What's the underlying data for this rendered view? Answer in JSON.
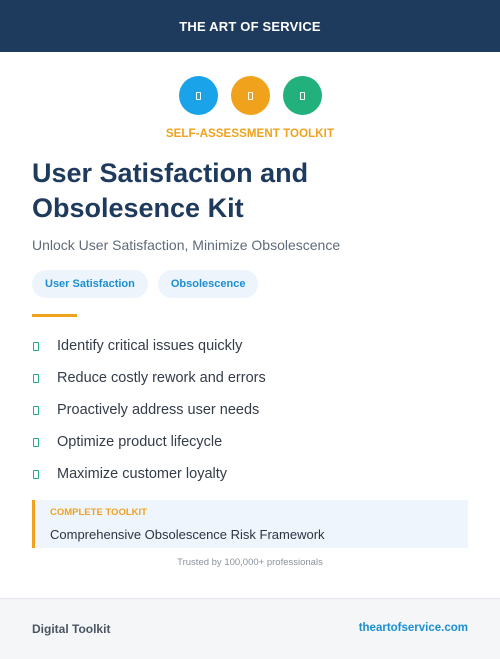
{
  "header": {
    "brand": "THE ART OF SERVICE"
  },
  "icons": [
    {
      "name": "document-icon",
      "color": "#1aa3e8"
    },
    {
      "name": "document-icon",
      "color": "#f0a21c"
    },
    {
      "name": "document-icon",
      "color": "#22b07d"
    }
  ],
  "kicker": "SELF-ASSESSMENT TOOLKIT",
  "title": "User Satisfaction and Obsolesence Kit",
  "subtitle": "Unlock User Satisfaction, Minimize Obsolescence",
  "tags": [
    "User Satisfaction",
    "Obsolescence"
  ],
  "features": [
    "Identify critical issues quickly",
    "Reduce costly rework and errors",
    "Proactively address user needs",
    "Optimize product lifecycle",
    "Maximize customer loyalty"
  ],
  "callout": {
    "label": "COMPLETE TOOLKIT",
    "text": "Comprehensive Obsolescence Risk Framework"
  },
  "trusted": "Trusted by 100,000+ professionals",
  "footer": {
    "left": "Digital Toolkit",
    "right": "theartofservice.com"
  },
  "colors": {
    "navy": "#1e3a5c",
    "orange": "#f0a21c",
    "blue": "#1aa3e8",
    "green": "#22b07d"
  }
}
